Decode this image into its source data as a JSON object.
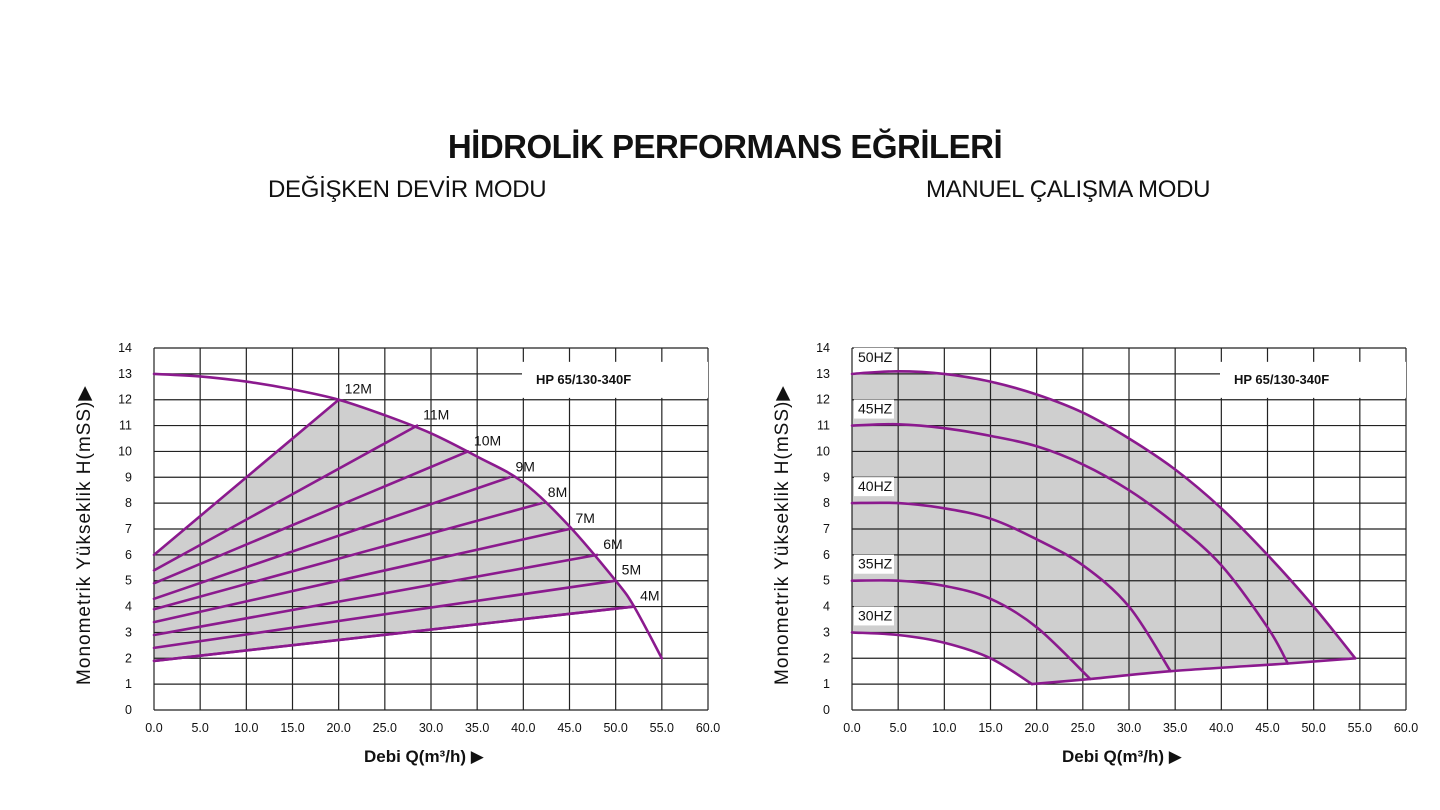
{
  "title": "HİDROLİK PERFORMANS EĞRİLERİ",
  "subtitles": {
    "left": "DEĞİŞKEN DEVİR MODU",
    "right": "MANUEL ÇALIŞMA MODU"
  },
  "colors": {
    "curve": "#8b1a8e",
    "fill": "#cfcfcf",
    "grid": "#222222"
  },
  "chart_data": [
    {
      "type": "line",
      "title": "DEĞİŞKEN DEVİR MODU",
      "model": "HP 65/130-340F",
      "xlabel": "Debi Q(m³/h) ▶",
      "ylabel": "Monometrik Yükseklik H(mSS)▶",
      "xlim": [
        0,
        60
      ],
      "ylim": [
        0,
        14
      ],
      "xticks": [
        "0.0",
        "5.0",
        "10.0",
        "15.0",
        "20.0",
        "25.0",
        "30.0",
        "35.0",
        "40.0",
        "45.0",
        "50.0",
        "55.0",
        "60.0"
      ],
      "yticks": [
        "0",
        "1",
        "2",
        "3",
        "4",
        "5",
        "6",
        "7",
        "8",
        "9",
        "10",
        "11",
        "12",
        "13",
        "14"
      ],
      "grid": true,
      "max_curve": {
        "x": [
          0,
          5,
          10,
          15,
          20,
          25,
          30,
          35,
          40,
          45,
          50,
          52,
          55
        ],
        "y": [
          13,
          12.9,
          12.7,
          12.4,
          12,
          11.4,
          10.7,
          9.8,
          8.8,
          7.1,
          5.0,
          4.0,
          2.0
        ]
      },
      "min_line": {
        "x": [
          0,
          52
        ],
        "y": [
          1.9,
          4.0
        ]
      },
      "series": [
        {
          "name": "12M",
          "x": [
            0,
            20
          ],
          "y": [
            6.0,
            12.0
          ]
        },
        {
          "name": "11M",
          "x": [
            0,
            28.5
          ],
          "y": [
            5.4,
            11.0
          ]
        },
        {
          "name": "10M",
          "x": [
            0,
            34
          ],
          "y": [
            4.9,
            10.0
          ]
        },
        {
          "name": "9M",
          "x": [
            0,
            38.5
          ],
          "y": [
            4.3,
            9.0
          ]
        },
        {
          "name": "8M",
          "x": [
            0,
            42
          ],
          "y": [
            3.9,
            8.0
          ]
        },
        {
          "name": "7M",
          "x": [
            0,
            45
          ],
          "y": [
            3.4,
            7.0
          ]
        },
        {
          "name": "6M",
          "x": [
            0,
            48
          ],
          "y": [
            2.9,
            6.0
          ]
        },
        {
          "name": "5M",
          "x": [
            0,
            50
          ],
          "y": [
            2.4,
            5.0
          ]
        },
        {
          "name": "4M",
          "x": [
            0,
            52
          ],
          "y": [
            1.9,
            4.0
          ]
        }
      ]
    },
    {
      "type": "line",
      "title": "MANUEL ÇALIŞMA MODU",
      "model": "HP 65/130-340F",
      "xlabel": "Debi Q(m³/h) ▶",
      "ylabel": "Monometrik Yükseklik H(mSS)▶",
      "xlim": [
        0,
        60
      ],
      "ylim": [
        0,
        14
      ],
      "xticks": [
        "0.0",
        "5.0",
        "10.0",
        "15.0",
        "20.0",
        "25.0",
        "30.0",
        "35.0",
        "40.0",
        "45.0",
        "50.0",
        "55.0",
        "60.0"
      ],
      "yticks": [
        "0",
        "1",
        "2",
        "3",
        "4",
        "5",
        "6",
        "7",
        "8",
        "9",
        "10",
        "11",
        "12",
        "13",
        "14"
      ],
      "grid": true,
      "min_line": {
        "x": [
          19.5,
          25.8,
          34.5,
          47.2,
          54.5
        ],
        "y": [
          1.0,
          1.2,
          1.5,
          1.8,
          2.0
        ]
      },
      "series": [
        {
          "name": "50HZ",
          "x": [
            0,
            5,
            10,
            15,
            20,
            25,
            30,
            35,
            40,
            45,
            50,
            54.5
          ],
          "y": [
            13,
            13.1,
            13.0,
            12.7,
            12.2,
            11.5,
            10.5,
            9.3,
            7.8,
            6.0,
            4.0,
            2.0
          ]
        },
        {
          "name": "45HZ",
          "x": [
            0,
            5,
            10,
            15,
            20,
            25,
            30,
            35,
            40,
            45,
            47.2
          ],
          "y": [
            11,
            11.05,
            10.9,
            10.6,
            10.2,
            9.5,
            8.5,
            7.2,
            5.6,
            3.2,
            1.8
          ]
        },
        {
          "name": "40HZ",
          "x": [
            0,
            5,
            10,
            15,
            20,
            25,
            30,
            34.5
          ],
          "y": [
            8,
            8.0,
            7.8,
            7.4,
            6.6,
            5.6,
            4.0,
            1.5
          ]
        },
        {
          "name": "35HZ",
          "x": [
            0,
            5,
            10,
            15,
            20,
            25.8
          ],
          "y": [
            5,
            5.0,
            4.8,
            4.3,
            3.2,
            1.2
          ]
        },
        {
          "name": "30HZ",
          "x": [
            0,
            5,
            10,
            15,
            19.5
          ],
          "y": [
            3,
            2.9,
            2.6,
            2.0,
            1.0
          ]
        }
      ]
    }
  ]
}
